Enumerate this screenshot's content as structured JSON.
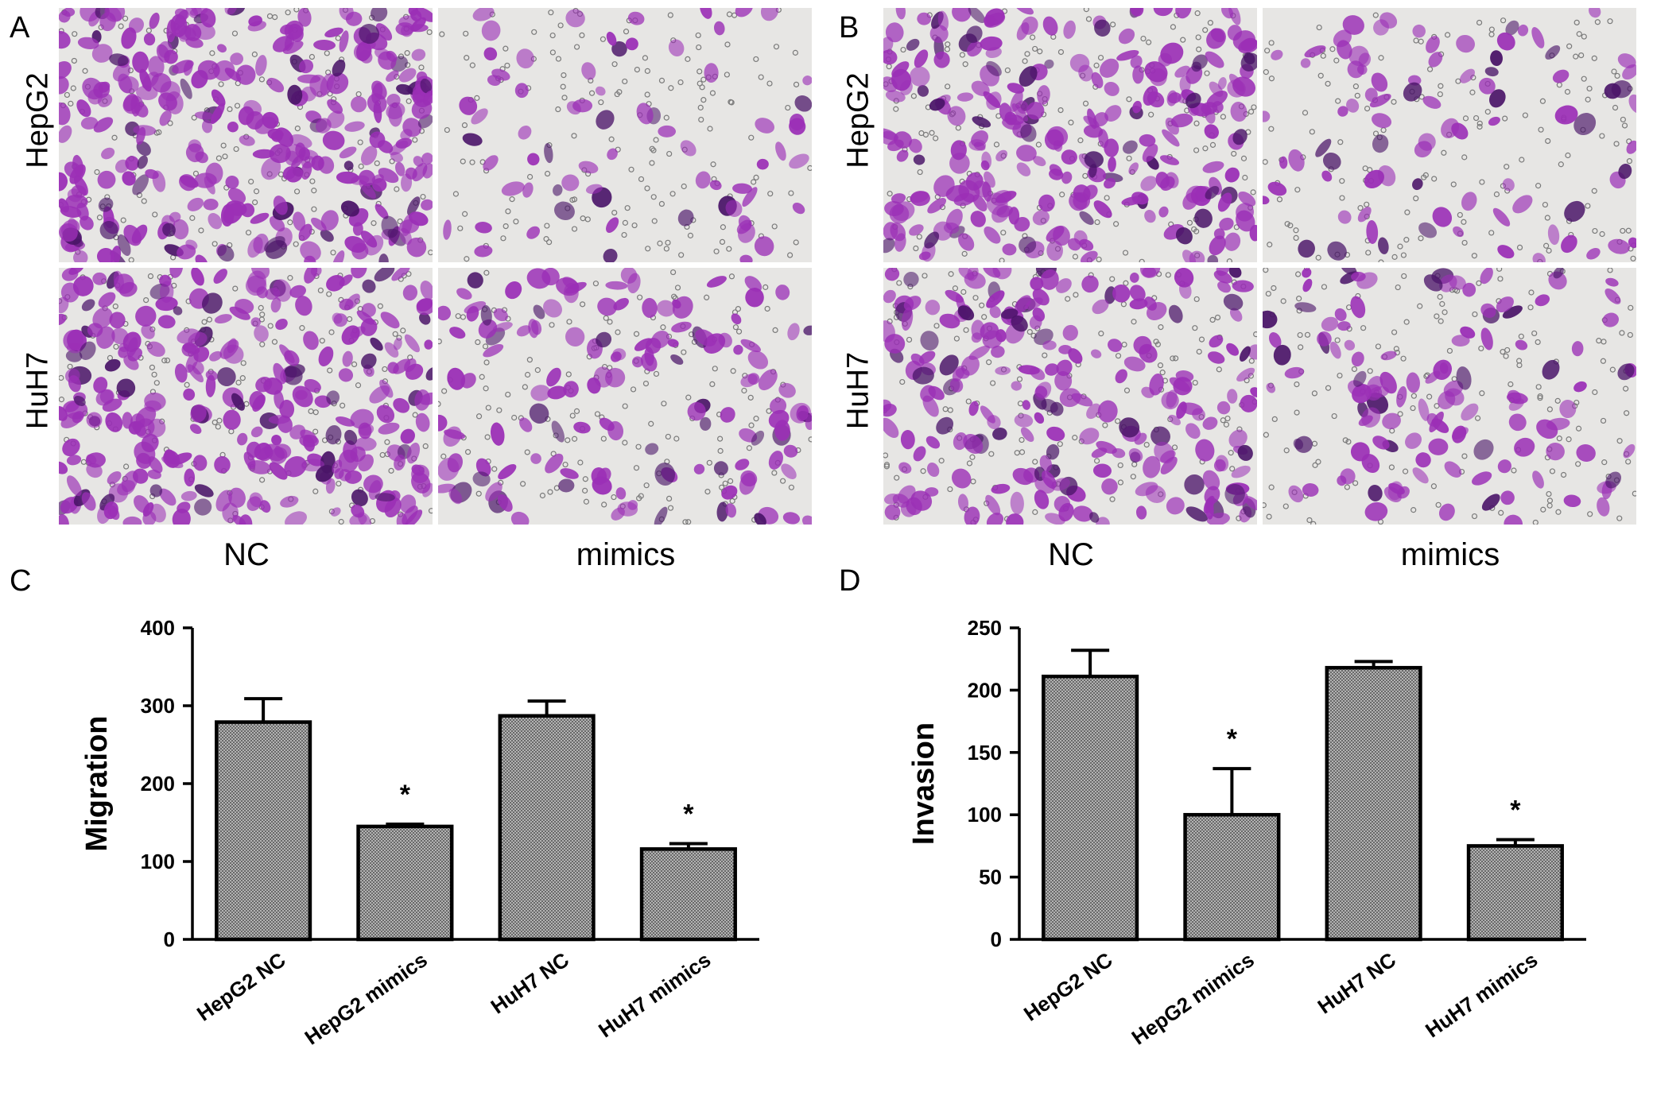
{
  "panels": {
    "A": {
      "letter": "A",
      "row_labels": [
        "HepG2",
        "HuH7"
      ],
      "col_labels": [
        "NC",
        "mimics"
      ]
    },
    "B": {
      "letter": "B",
      "row_labels": [
        "HepG2",
        "HuH7"
      ],
      "col_labels": [
        "NC",
        "mimics"
      ]
    },
    "C": {
      "letter": "C"
    },
    "D": {
      "letter": "D"
    }
  },
  "colors": {
    "stain": "#9b2fb6",
    "stain_dark": "#4a1468",
    "background": "#e7e6e4",
    "bar_fill": "#9a9a9a"
  },
  "chart_data": [
    {
      "type": "bar",
      "title": "",
      "xlabel": "",
      "ylabel": "Migration",
      "categories": [
        "HepG2 NC",
        "HepG2 mimics",
        "HuH7 NC",
        "HuH7 mimics"
      ],
      "values": [
        279,
        145,
        287,
        116
      ],
      "errors": [
        30,
        3,
        19,
        7
      ],
      "significance": [
        "",
        "*",
        "",
        "*"
      ],
      "ylim": [
        0,
        400
      ],
      "yticks": [
        "0",
        "100",
        "200",
        "300",
        "400"
      ],
      "grid": false
    },
    {
      "type": "bar",
      "title": "",
      "xlabel": "",
      "ylabel": "Invasion",
      "categories": [
        "HepG2 NC",
        "HepG2 mimics",
        "HuH7 NC",
        "HuH7 mimics"
      ],
      "values": [
        211,
        100,
        218,
        75
      ],
      "errors": [
        21,
        37,
        5,
        5
      ],
      "significance": [
        "",
        "*",
        "",
        "*"
      ],
      "ylim": [
        0,
        250
      ],
      "yticks": [
        "0",
        "50",
        "100",
        "150",
        "200",
        "250"
      ],
      "grid": false
    }
  ]
}
